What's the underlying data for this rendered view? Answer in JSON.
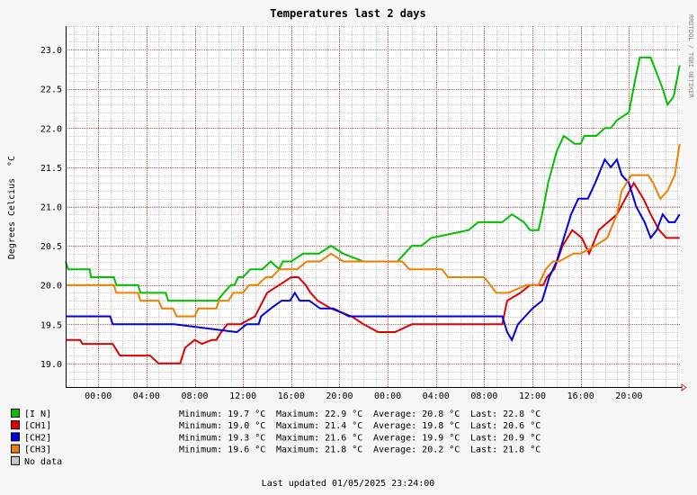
{
  "chart_data": {
    "type": "line",
    "title": "Temperatures last 2 days",
    "ylabel": "Degrees Celcius",
    "yunit": "°C",
    "watermark": "RRDTOOL / TOBI OETIKER",
    "ylim": [
      18.7,
      23.3
    ],
    "yticks": [
      "19.0",
      "19.5",
      "20.0",
      "20.5",
      "21.0",
      "21.5",
      "22.0",
      "22.5",
      "23.0"
    ],
    "xlim_hours": [
      -2.7,
      48.3
    ],
    "xticks": [
      "00:00",
      "04:00",
      "08:00",
      "12:00",
      "16:00",
      "20:00",
      "00:00",
      "04:00",
      "08:00",
      "12:00",
      "16:00",
      "20:00"
    ],
    "grid": true,
    "legend_placement": "bottom-left",
    "series": [
      {
        "name": "[I N]",
        "color": "#00c000",
        "x": [
          -2.7,
          -2.5,
          -0.7,
          -0.6,
          1.3,
          1.5,
          3.3,
          3.5,
          5.6,
          5.8,
          9.9,
          10.4,
          11.0,
          11.3,
          11.6,
          12.0,
          12.6,
          13.6,
          14.3,
          15.0,
          15.3,
          16.0,
          17.0,
          18.3,
          19.3,
          20.3,
          22.0,
          23.5,
          24.8,
          25.4,
          26.0,
          26.8,
          27.6,
          30.7,
          31.5,
          33.5,
          34.3,
          35.3,
          35.8,
          36.5,
          36.8,
          37.3,
          38.0,
          38.6,
          39.5,
          40.0,
          40.3,
          41.3,
          42.0,
          42.5,
          43.0,
          44.0,
          44.5,
          44.9,
          45.5,
          45.8,
          46.8,
          47.2,
          47.7,
          48.2
        ],
        "y": [
          20.3,
          20.2,
          20.2,
          20.1,
          20.1,
          20.0,
          20.0,
          19.9,
          19.9,
          19.8,
          19.8,
          19.9,
          20.0,
          20.0,
          20.1,
          20.1,
          20.2,
          20.2,
          20.3,
          20.2,
          20.3,
          20.3,
          20.4,
          20.4,
          20.5,
          20.4,
          20.3,
          20.3,
          20.3,
          20.4,
          20.5,
          20.5,
          20.6,
          20.7,
          20.8,
          20.8,
          20.9,
          20.8,
          20.7,
          20.7,
          20.9,
          21.3,
          21.7,
          21.9,
          21.8,
          21.8,
          21.9,
          21.9,
          22.0,
          22.0,
          22.1,
          22.2,
          22.6,
          22.9,
          22.9,
          22.9,
          22.5,
          22.3,
          22.4,
          22.8
        ]
      },
      {
        "name": "[CH1]",
        "color": "#e00000",
        "x": [
          -2.7,
          -1.5,
          -1.3,
          1.2,
          1.8,
          4.3,
          5.0,
          6.8,
          7.2,
          8.0,
          8.6,
          9.4,
          9.8,
          10.2,
          10.7,
          11.8,
          13.0,
          14.0,
          15.0,
          16.0,
          16.6,
          17.2,
          17.6,
          18.2,
          19.3,
          21.0,
          22.0,
          23.2,
          24.6,
          26.0,
          29.0,
          33.5,
          33.9,
          35.0,
          35.8,
          36.9,
          37.2,
          37.8,
          38.5,
          39.3,
          40.1,
          40.7,
          41.5,
          43.0,
          43.7,
          44.4,
          44.8,
          45.2,
          45.8,
          46.5,
          47.1,
          47.6,
          48.2
        ],
        "y": [
          19.3,
          19.3,
          19.25,
          19.25,
          19.1,
          19.1,
          19.0,
          19.0,
          19.2,
          19.3,
          19.25,
          19.3,
          19.3,
          19.4,
          19.5,
          19.5,
          19.6,
          19.9,
          20.0,
          20.1,
          20.1,
          20.0,
          19.9,
          19.8,
          19.7,
          19.6,
          19.5,
          19.4,
          19.4,
          19.5,
          19.5,
          19.5,
          19.8,
          19.9,
          20.0,
          20.0,
          20.1,
          20.2,
          20.5,
          20.7,
          20.6,
          20.4,
          20.7,
          20.9,
          21.1,
          21.3,
          21.2,
          21.1,
          20.9,
          20.7,
          20.6,
          20.6,
          20.6
        ]
      },
      {
        "name": "[CH2]",
        "color": "#0000e0",
        "x": [
          -2.7,
          1.0,
          1.2,
          6.3,
          11.5,
          12.3,
          13.3,
          13.5,
          14.3,
          15.2,
          15.9,
          16.3,
          16.7,
          17.5,
          18.4,
          19.5,
          20.8,
          21.6,
          24.0,
          26.8,
          28.0,
          30.0,
          32.0,
          33.5,
          33.9,
          34.3,
          34.8,
          35.4,
          36.0,
          36.8,
          37.4,
          38.0,
          38.6,
          39.2,
          39.8,
          40.6,
          41.2,
          42.0,
          42.5,
          43.0,
          43.4,
          44.0,
          44.6,
          45.3,
          45.8,
          46.3,
          46.8,
          47.3,
          47.8,
          48.2
        ],
        "y": [
          19.6,
          19.6,
          19.5,
          19.5,
          19.4,
          19.5,
          19.5,
          19.6,
          19.7,
          19.8,
          19.8,
          19.9,
          19.8,
          19.8,
          19.7,
          19.7,
          19.6,
          19.6,
          19.6,
          19.6,
          19.6,
          19.6,
          19.6,
          19.6,
          19.4,
          19.3,
          19.5,
          19.6,
          19.7,
          19.8,
          20.1,
          20.3,
          20.6,
          20.9,
          21.1,
          21.1,
          21.3,
          21.6,
          21.5,
          21.6,
          21.4,
          21.3,
          21.0,
          20.8,
          20.6,
          20.7,
          20.9,
          20.8,
          20.8,
          20.9
        ]
      },
      {
        "name": "[CH3]",
        "color": "#f08000",
        "x": [
          -2.7,
          1.3,
          1.5,
          3.3,
          3.5,
          5.0,
          5.3,
          6.2,
          6.5,
          8.0,
          8.3,
          9.8,
          10.0,
          10.8,
          11.2,
          12.0,
          12.5,
          13.2,
          13.9,
          14.4,
          15.0,
          16.5,
          17.3,
          18.4,
          19.3,
          20.3,
          22.0,
          25.2,
          25.8,
          28.5,
          29.0,
          32.0,
          33.0,
          34.0,
          35.5,
          36.5,
          37.1,
          37.7,
          38.2,
          39.4,
          40.0,
          41.2,
          42.2,
          43.0,
          43.4,
          44.2,
          45.6,
          46.0,
          46.6,
          47.2,
          47.8,
          48.2
        ],
        "y": [
          20.0,
          20.0,
          19.9,
          19.9,
          19.8,
          19.8,
          19.7,
          19.7,
          19.6,
          19.6,
          19.7,
          19.7,
          19.8,
          19.8,
          19.9,
          19.9,
          20.0,
          20.0,
          20.1,
          20.1,
          20.2,
          20.2,
          20.3,
          20.3,
          20.4,
          20.3,
          20.3,
          20.3,
          20.2,
          20.2,
          20.1,
          20.1,
          19.9,
          19.9,
          20.0,
          20.0,
          20.2,
          20.3,
          20.3,
          20.4,
          20.4,
          20.5,
          20.6,
          20.9,
          21.2,
          21.4,
          21.4,
          21.3,
          21.1,
          21.2,
          21.4,
          21.8
        ]
      }
    ]
  },
  "legend": [
    {
      "name": "[I N]",
      "color": "#00c000",
      "min": "Minimum: 19.7 °C",
      "max": "Maximum: 22.9 °C",
      "avg": "Average: 20.8 °C",
      "last": "Last: 22.8 °C"
    },
    {
      "name": "[CH1]",
      "color": "#e00000",
      "min": "Minimum: 19.0 °C",
      "max": "Maximum: 21.4 °C",
      "avg": "Average: 19.8 °C",
      "last": "Last: 20.6 °C"
    },
    {
      "name": "[CH2]",
      "color": "#0000e0",
      "min": "Minimum: 19.3 °C",
      "max": "Maximum: 21.6 °C",
      "avg": "Average: 19.9 °C",
      "last": "Last: 20.9 °C"
    },
    {
      "name": "[CH3]",
      "color": "#f08000",
      "min": "Minimum: 19.6 °C",
      "max": "Maximum: 21.8 °C",
      "avg": "Average: 20.2 °C",
      "last": "Last: 21.8 °C"
    },
    {
      "name": "No data",
      "color": "#c8c8c8",
      "min": "",
      "max": "",
      "avg": "",
      "last": ""
    }
  ],
  "footer": {
    "updated": "Last updated 01/05/2025 23:24:00"
  }
}
